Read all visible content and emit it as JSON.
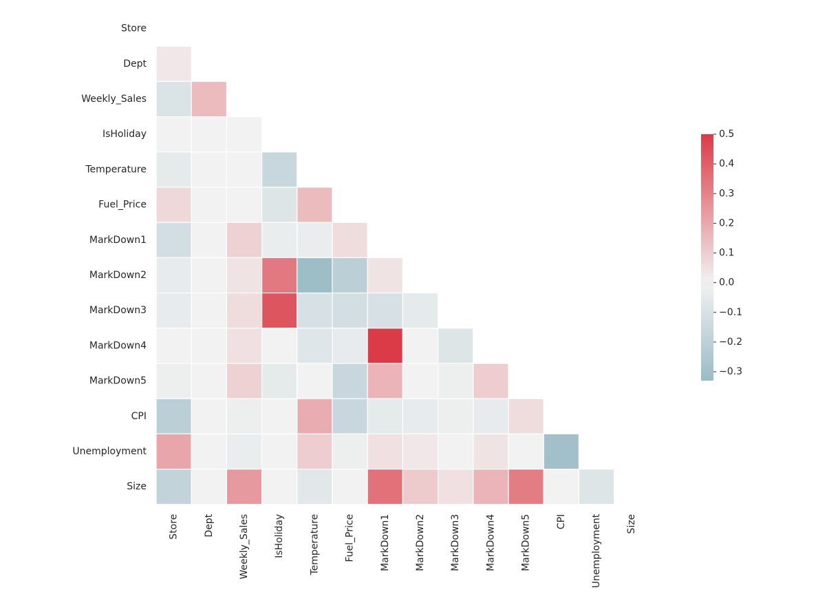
{
  "chart_data": {
    "type": "heatmap",
    "title": "",
    "xlabel": "",
    "ylabel": "",
    "variables": [
      "Store",
      "Dept",
      "Weekly_Sales",
      "IsHoliday",
      "Temperature",
      "Fuel_Price",
      "MarkDown1",
      "MarkDown2",
      "MarkDown3",
      "MarkDown4",
      "MarkDown5",
      "CPI",
      "Unemployment",
      "Size"
    ],
    "mask": "upper-triangle-including-diagonal",
    "matrix": [
      [
        null,
        null,
        null,
        null,
        null,
        null,
        null,
        null,
        null,
        null,
        null,
        null,
        null,
        null
      ],
      [
        0.03,
        null,
        null,
        null,
        null,
        null,
        null,
        null,
        null,
        null,
        null,
        null,
        null,
        null
      ],
      [
        -0.09,
        0.15,
        null,
        null,
        null,
        null,
        null,
        null,
        null,
        null,
        null,
        null,
        null,
        null
      ],
      [
        0.0,
        0.0,
        0.0,
        null,
        null,
        null,
        null,
        null,
        null,
        null,
        null,
        null,
        null,
        null
      ],
      [
        -0.05,
        0.0,
        0.0,
        -0.16,
        null,
        null,
        null,
        null,
        null,
        null,
        null,
        null,
        null,
        null
      ],
      [
        0.07,
        0.0,
        0.0,
        -0.08,
        0.15,
        null,
        null,
        null,
        null,
        null,
        null,
        null,
        null,
        null
      ],
      [
        -0.12,
        0.0,
        0.09,
        -0.03,
        -0.03,
        0.06,
        null,
        null,
        null,
        null,
        null,
        null,
        null,
        null
      ],
      [
        -0.04,
        0.0,
        0.04,
        0.33,
        -0.32,
        -0.21,
        0.04,
        null,
        null,
        null,
        null,
        null,
        null,
        null
      ],
      [
        -0.04,
        0.0,
        0.06,
        0.43,
        -0.1,
        -0.12,
        -0.1,
        -0.05,
        null,
        null,
        null,
        null,
        null,
        null
      ],
      [
        0.0,
        0.0,
        0.05,
        0.0,
        -0.07,
        -0.04,
        0.5,
        0.0,
        -0.08,
        null,
        null,
        null,
        null,
        null
      ],
      [
        -0.02,
        0.0,
        0.09,
        -0.05,
        0.0,
        -0.16,
        0.17,
        0.0,
        -0.02,
        0.1,
        null,
        null,
        null,
        null
      ],
      [
        -0.21,
        0.0,
        -0.02,
        0.0,
        0.19,
        -0.16,
        -0.05,
        -0.04,
        -0.02,
        -0.04,
        0.06,
        null,
        null,
        null
      ],
      [
        0.21,
        0.0,
        -0.03,
        0.0,
        0.1,
        -0.02,
        0.05,
        0.03,
        0.0,
        0.04,
        0.0,
        -0.3,
        null,
        null
      ],
      [
        -0.18,
        0.0,
        0.24,
        0.0,
        -0.06,
        0.0,
        0.35,
        0.11,
        0.05,
        0.17,
        0.32,
        0.0,
        -0.08,
        null
      ]
    ],
    "colorscale": {
      "vmin": -0.33,
      "vmax": 0.5,
      "center": 0.0,
      "low_color": "#6d9faf",
      "center_color": "#f2f2f2",
      "high_color": "#da3b46",
      "ticks": [
        "−0.3",
        "−0.2",
        "−0.1",
        "0.0",
        "0.1",
        "0.2",
        "0.3",
        "0.4",
        "0.5"
      ],
      "tick_values": [
        -0.3,
        -0.2,
        -0.1,
        0.0,
        0.1,
        0.2,
        0.3,
        0.4,
        0.5
      ]
    },
    "legend": "right",
    "grid": false
  }
}
